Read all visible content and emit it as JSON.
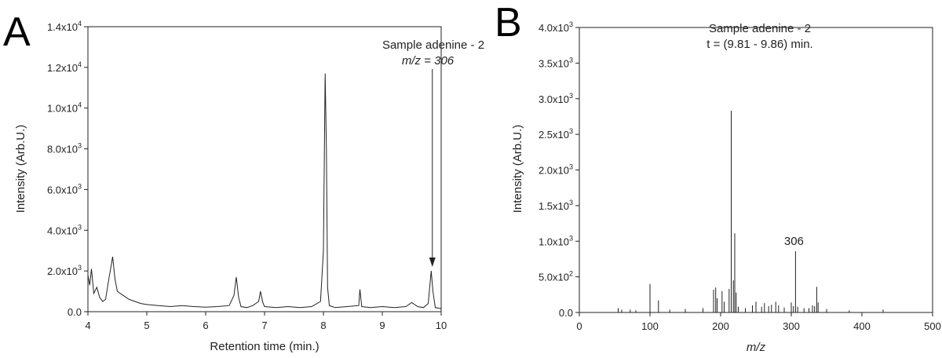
{
  "chart_data": [
    {
      "panel": "A",
      "type": "line",
      "annotation_lines": [
        "Sample adenine - 2",
        "m/z = 306"
      ],
      "annotation_arrow_x": 9.85,
      "xlabel": "Retention time (min.)",
      "ylabel": "Intensity (Arb.U.)",
      "xlim": [
        4,
        10
      ],
      "ylim": [
        0,
        14000
      ],
      "xticks": [
        4,
        5,
        6,
        7,
        8,
        9,
        10
      ],
      "xtick_labels": [
        "4",
        "5",
        "6",
        "7",
        "8",
        "9",
        "10"
      ],
      "yticks": [
        0,
        2000,
        4000,
        6000,
        8000,
        10000,
        12000,
        14000
      ],
      "ytick_labels": [
        "0.0",
        "2.0x10",
        "4.0x10",
        "6.0x10",
        "8.0x10",
        "1.0x10",
        "1.2x10",
        "1.4x10"
      ],
      "ytick_exponents": [
        "",
        "3",
        "3",
        "3",
        "3",
        "4",
        "4",
        "4"
      ],
      "grid": false,
      "series": [
        {
          "x": [
            4.0,
            4.03,
            4.06,
            4.1,
            4.15,
            4.2,
            4.25,
            4.3,
            4.35,
            4.38,
            4.42,
            4.46,
            4.5,
            4.6,
            4.7,
            4.8,
            4.9,
            5.0,
            5.2,
            5.4,
            5.6,
            5.8,
            6.0,
            6.2,
            6.4,
            6.48,
            6.52,
            6.56,
            6.6,
            6.7,
            6.8,
            6.9,
            6.93,
            6.97,
            7.0,
            7.2,
            7.4,
            7.6,
            7.8,
            7.95,
            8.0,
            8.03,
            8.05,
            8.07,
            8.1,
            8.15,
            8.2,
            8.4,
            8.6,
            8.62,
            8.65,
            8.8,
            9.0,
            9.2,
            9.4,
            9.5,
            9.6,
            9.7,
            9.78,
            9.83,
            9.86,
            9.9,
            10.0
          ],
          "y": [
            1800,
            1300,
            2100,
            900,
            1200,
            700,
            500,
            600,
            1500,
            2000,
            2700,
            1600,
            1000,
            800,
            600,
            500,
            400,
            350,
            300,
            250,
            300,
            250,
            220,
            250,
            300,
            800,
            1700,
            700,
            250,
            200,
            300,
            500,
            1000,
            450,
            250,
            200,
            250,
            200,
            250,
            500,
            3000,
            11700,
            8000,
            1200,
            300,
            250,
            200,
            250,
            300,
            1100,
            250,
            200,
            250,
            200,
            250,
            450,
            250,
            200,
            400,
            2000,
            1000,
            200,
            150
          ]
        }
      ]
    },
    {
      "panel": "B",
      "type": "bar",
      "annotation_lines": [
        "Sample adenine - 2",
        "t = (9.81 - 9.86) min."
      ],
      "peak_label": "306",
      "peak_label_x": 306,
      "xlabel": "m/z",
      "ylabel": "Intensity (Arb.U.)",
      "xlim": [
        0,
        500
      ],
      "ylim": [
        0,
        4000
      ],
      "xticks": [
        0,
        100,
        200,
        300,
        400,
        500
      ],
      "xtick_labels": [
        "0",
        "100",
        "200",
        "300",
        "400",
        "500"
      ],
      "yticks": [
        0,
        500,
        1000,
        1500,
        2000,
        2500,
        3000,
        3500,
        4000
      ],
      "ytick_labels": [
        "0.0",
        "5.0x10",
        "1.0x10",
        "1.5x10",
        "2.0x10",
        "2.5x10",
        "3.0x10",
        "3.5x10",
        "4.0x10"
      ],
      "ytick_exponents": [
        "",
        "2",
        "3",
        "3",
        "3",
        "3",
        "3",
        "3",
        "3"
      ],
      "grid": false,
      "series": [
        {
          "x": [
            55,
            60,
            72,
            80,
            100,
            112,
            128,
            150,
            175,
            190,
            193,
            195,
            202,
            205,
            212,
            215,
            218,
            220,
            222,
            225,
            235,
            245,
            250,
            258,
            262,
            268,
            272,
            278,
            282,
            290,
            300,
            303,
            306,
            309,
            318,
            325,
            330,
            333,
            336,
            338,
            350,
            382,
            430
          ],
          "values": [
            60,
            40,
            40,
            30,
            400,
            170,
            40,
            50,
            60,
            320,
            350,
            200,
            300,
            150,
            330,
            2830,
            450,
            1110,
            280,
            80,
            60,
            100,
            150,
            80,
            130,
            90,
            110,
            150,
            100,
            70,
            140,
            90,
            860,
            80,
            60,
            60,
            100,
            90,
            360,
            140,
            50,
            30,
            40
          ]
        }
      ]
    }
  ]
}
